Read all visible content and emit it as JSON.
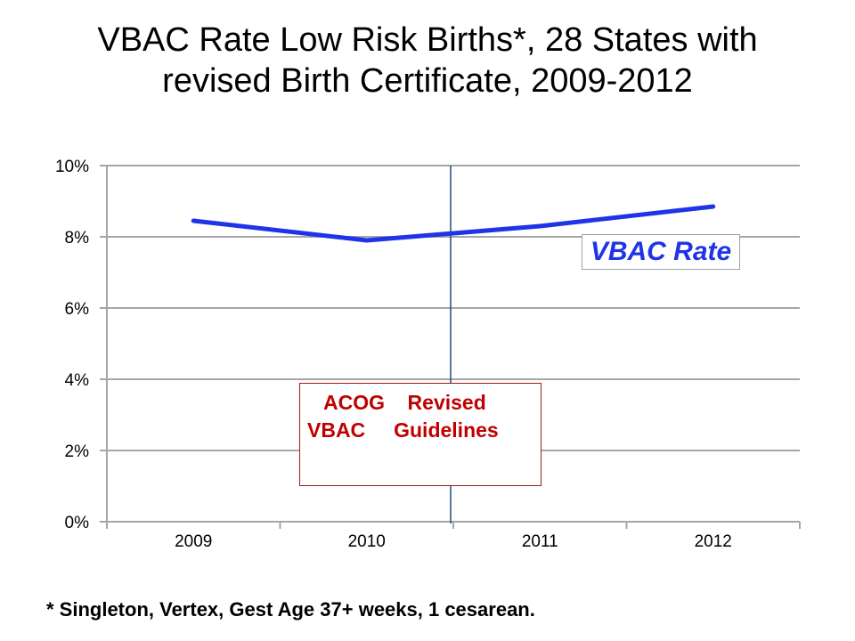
{
  "title": {
    "line1": "VBAC Rate Low Risk Births*, 28 States with",
    "line2": "revised Birth Certificate, 2009-2012"
  },
  "footnote": "* Singleton, Vertex, Gest Age 37+ weeks, 1 cesarean.",
  "annotation": {
    "line1": "ACOG    Revised",
    "line2": "VBAC     Guidelines"
  },
  "colors": {
    "series": "#1f34e6",
    "annotation_text": "#c00000",
    "divider": "#1f4e79",
    "grid": "#a6a6a6"
  },
  "chart_data": {
    "type": "line",
    "categories": [
      "2009",
      "2010",
      "2011",
      "2012"
    ],
    "series": [
      {
        "name": "VBAC Rate",
        "values": [
          8.45,
          7.9,
          8.3,
          8.85
        ]
      }
    ],
    "ylim": [
      0,
      10
    ],
    "yticks": [
      0,
      2,
      4,
      6,
      8,
      10
    ],
    "ytick_labels": [
      "0%",
      "2%",
      "4%",
      "6%",
      "8%",
      "10%"
    ],
    "extra_points": [
      {
        "x": 2010.55,
        "value": 8.12
      }
    ],
    "grid": true,
    "legend": "right, inside plot",
    "vertical_marker": {
      "between": [
        "2010",
        "2011"
      ]
    }
  }
}
